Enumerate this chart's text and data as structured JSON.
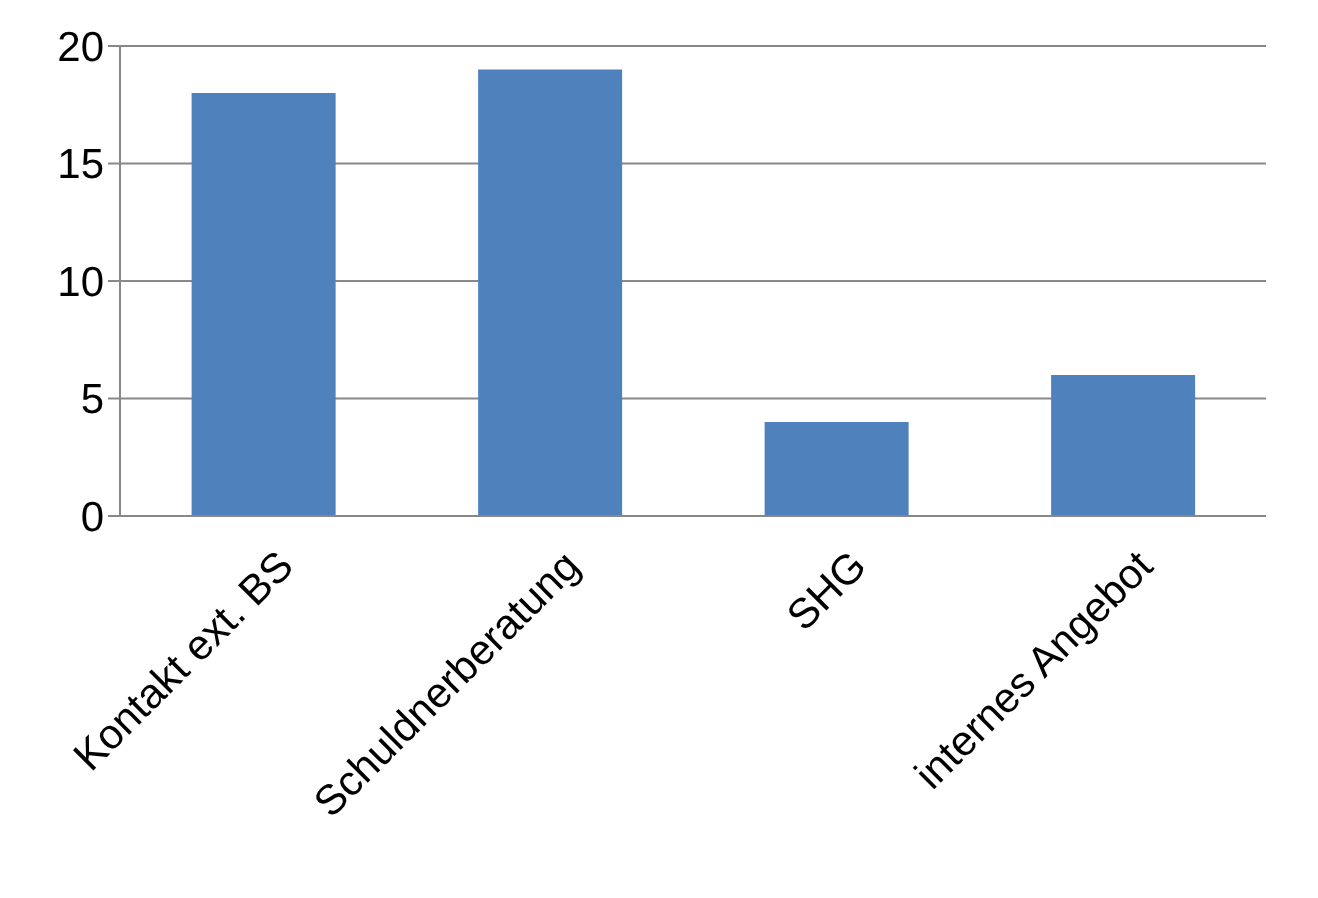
{
  "chart_data": {
    "type": "bar",
    "categories": [
      "Kontakt ext. BS",
      "Schuldnerberatung",
      "SHG",
      "internes Angebot"
    ],
    "values": [
      18,
      19,
      4,
      6
    ],
    "color": "#4f81bd",
    "ylim": [
      0,
      20
    ],
    "yticks": [
      0,
      5,
      10,
      15,
      20
    ],
    "grid": "y",
    "legend": false
  }
}
